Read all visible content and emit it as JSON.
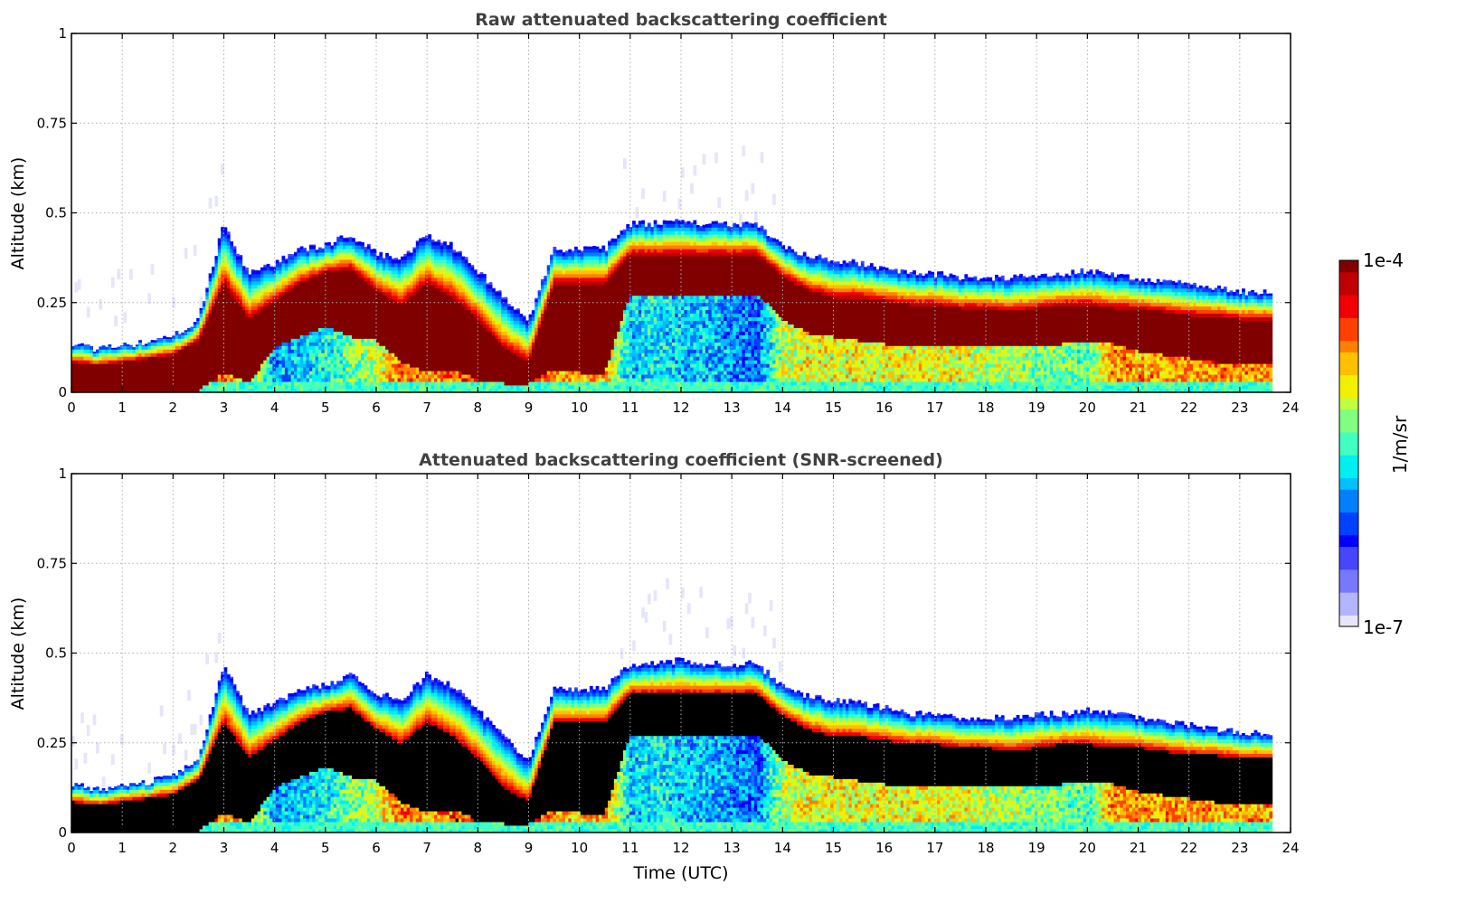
{
  "chart_data": [
    {
      "type": "heatmap",
      "title": "Raw attenuated backscattering coefficient",
      "xlabel": "",
      "ylabel": "Altitude (km)",
      "xlim": [
        0,
        24
      ],
      "ylim": [
        0,
        1
      ],
      "xticks": [
        "0",
        "1",
        "2",
        "3",
        "4",
        "5",
        "6",
        "7",
        "8",
        "9",
        "10",
        "11",
        "12",
        "13",
        "14",
        "15",
        "16",
        "17",
        "18",
        "19",
        "20",
        "21",
        "22",
        "23",
        "24"
      ],
      "yticks": [
        "0",
        "0.25",
        "0.5",
        "0.75",
        "1"
      ],
      "grid": true,
      "screened": false,
      "data_end_time": 23.6,
      "layer_profile": {
        "time": [
          0,
          0.5,
          1,
          1.5,
          2,
          2.5,
          3,
          3.5,
          4,
          4.5,
          5,
          5.5,
          6,
          6.5,
          7,
          7.5,
          8,
          8.5,
          9,
          9.5,
          10,
          10.5,
          11,
          11.5,
          12,
          12.5,
          13,
          13.5,
          14,
          14.5,
          15,
          15.5,
          16,
          16.5,
          17,
          17.5,
          18,
          18.5,
          19,
          19.5,
          20,
          20.5,
          21,
          21.5,
          22,
          22.5,
          23,
          23.6
        ],
        "top_km": [
          0.14,
          0.12,
          0.13,
          0.14,
          0.16,
          0.2,
          0.47,
          0.33,
          0.36,
          0.4,
          0.41,
          0.44,
          0.39,
          0.37,
          0.44,
          0.41,
          0.34,
          0.27,
          0.2,
          0.4,
          0.4,
          0.4,
          0.47,
          0.47,
          0.48,
          0.47,
          0.47,
          0.47,
          0.41,
          0.38,
          0.37,
          0.36,
          0.35,
          0.33,
          0.33,
          0.32,
          0.32,
          0.32,
          0.33,
          0.33,
          0.34,
          0.33,
          0.32,
          0.31,
          0.3,
          0.29,
          0.28,
          0.28
        ],
        "core_top_km": [
          0.08,
          0.07,
          0.08,
          0.09,
          0.1,
          0.14,
          0.3,
          0.2,
          0.25,
          0.3,
          0.33,
          0.34,
          0.28,
          0.24,
          0.3,
          0.26,
          0.2,
          0.12,
          0.08,
          0.3,
          0.3,
          0.3,
          0.38,
          0.38,
          0.38,
          0.38,
          0.38,
          0.38,
          0.32,
          0.28,
          0.26,
          0.26,
          0.25,
          0.24,
          0.24,
          0.23,
          0.23,
          0.22,
          0.23,
          0.24,
          0.24,
          0.23,
          0.23,
          0.22,
          0.21,
          0.21,
          0.2,
          0.2
        ],
        "core_bottom_km": [
          0,
          0,
          0,
          0,
          0,
          0,
          0.05,
          0.02,
          0.12,
          0.15,
          0.18,
          0.15,
          0.14,
          0.08,
          0.05,
          0.06,
          0.03,
          0.02,
          0.02,
          0.06,
          0.05,
          0.05,
          0.27,
          0.27,
          0.27,
          0.26,
          0.27,
          0.27,
          0.2,
          0.16,
          0.15,
          0.14,
          0.13,
          0.12,
          0.12,
          0.12,
          0.12,
          0.12,
          0.12,
          0.13,
          0.14,
          0.13,
          0.11,
          0.1,
          0.09,
          0.08,
          0.08,
          0.08
        ],
        "lower_intensity": [
          0.9,
          0.9,
          0.9,
          0.9,
          0.9,
          0.85,
          0.8,
          0.7,
          0.35,
          0.4,
          0.45,
          0.55,
          0.6,
          0.8,
          0.75,
          0.8,
          0.85,
          0.85,
          0.9,
          0.75,
          0.7,
          0.75,
          0.4,
          0.45,
          0.4,
          0.4,
          0.35,
          0.3,
          0.6,
          0.65,
          0.65,
          0.65,
          0.65,
          0.65,
          0.65,
          0.65,
          0.6,
          0.6,
          0.55,
          0.55,
          0.5,
          0.75,
          0.75,
          0.75,
          0.75,
          0.75,
          0.75,
          0.75
        ]
      }
    },
    {
      "type": "heatmap",
      "title": "Attenuated backscattering coefficient (SNR-screened)",
      "xlabel": "Time (UTC)",
      "ylabel": "Altitude (km)",
      "xlim": [
        0,
        24
      ],
      "ylim": [
        0,
        1
      ],
      "xticks": [
        "0",
        "1",
        "2",
        "3",
        "4",
        "5",
        "6",
        "7",
        "8",
        "9",
        "10",
        "11",
        "12",
        "13",
        "14",
        "15",
        "16",
        "17",
        "18",
        "19",
        "20",
        "21",
        "22",
        "23",
        "24"
      ],
      "yticks": [
        "0",
        "0.25",
        "0.5",
        "0.75",
        "1"
      ],
      "grid": true,
      "screened": true,
      "screened_color": "#000000",
      "data_end_time": 23.6
    }
  ],
  "colorbar": {
    "label": "1/m/sr",
    "max_label": "1e-4",
    "min_label": "1e-7",
    "scale": "log",
    "colormap": [
      "#e6e6fa",
      "#b4b4ff",
      "#7878ff",
      "#4646ff",
      "#0000ff",
      "#0040ff",
      "#0080ff",
      "#00c0ff",
      "#00f0f0",
      "#40ffc0",
      "#80ff80",
      "#c0ff40",
      "#f0f000",
      "#ffc000",
      "#ff8000",
      "#ff4000",
      "#f00000",
      "#c00000",
      "#800000"
    ]
  }
}
